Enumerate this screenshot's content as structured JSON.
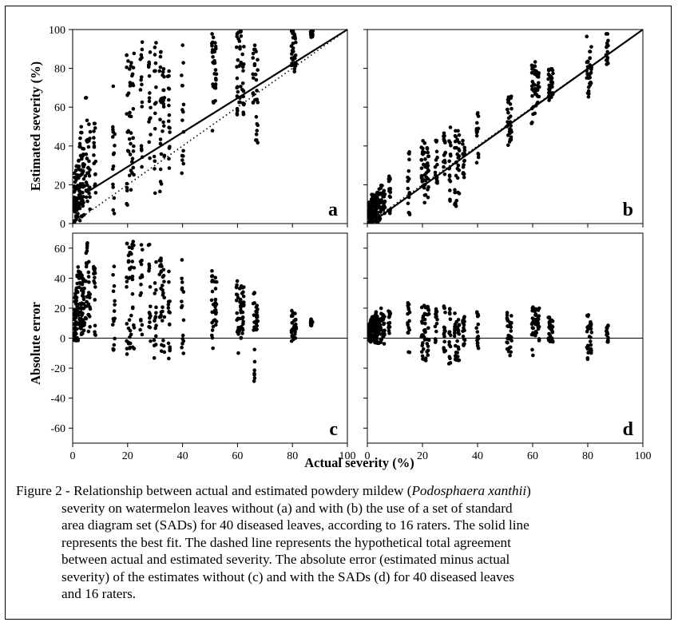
{
  "chart_data": [
    {
      "panel": "a",
      "type": "scatter",
      "ylabel": "Estimated severity (%)",
      "xlim": [
        0,
        100
      ],
      "ylim": [
        0,
        100
      ],
      "xticks": [],
      "yticks": [
        0,
        20,
        40,
        60,
        80,
        100
      ],
      "fit_line": {
        "x": [
          5,
          100
        ],
        "y": [
          16,
          100
        ]
      },
      "agreement_line": {
        "x": [
          0,
          100
        ],
        "y": [
          0,
          100
        ]
      },
      "points": {
        "actual_severity_levels": [
          0.5,
          1,
          1.5,
          2,
          2.5,
          3,
          3.5,
          4,
          5,
          6,
          8,
          15,
          20,
          21,
          22,
          25,
          28,
          30,
          32,
          33,
          35,
          40,
          51,
          52,
          60,
          61,
          62,
          66,
          67,
          80,
          81,
          87
        ],
        "estimated_ranges": [
          [
            0,
            20
          ],
          [
            0,
            28
          ],
          [
            0,
            30
          ],
          [
            0,
            36
          ],
          [
            0,
            45
          ],
          [
            0,
            50
          ],
          [
            2,
            45
          ],
          [
            3,
            40
          ],
          [
            5,
            70
          ],
          [
            5,
            56
          ],
          [
            10,
            57
          ],
          [
            5,
            72
          ],
          [
            8,
            90
          ],
          [
            10,
            92
          ],
          [
            15,
            88
          ],
          [
            20,
            95
          ],
          [
            25,
            97
          ],
          [
            15,
            95
          ],
          [
            10,
            90
          ],
          [
            20,
            80
          ],
          [
            25,
            80
          ],
          [
            25,
            93
          ],
          [
            45,
            98
          ],
          [
            55,
            96
          ],
          [
            50,
            100
          ],
          [
            48,
            100
          ],
          [
            55,
            100
          ],
          [
            60,
            92
          ],
          [
            33,
            90
          ],
          [
            80,
            100
          ],
          [
            78,
            100
          ],
          [
            95,
            100
          ]
        ]
      },
      "label": "a"
    },
    {
      "panel": "b",
      "type": "scatter",
      "xlim": [
        0,
        100
      ],
      "ylim": [
        0,
        100
      ],
      "xticks": [],
      "yticks": [],
      "fit_line": {
        "x": [
          1,
          100
        ],
        "y": [
          0,
          103
        ]
      },
      "agreement_line": {
        "x": [
          0,
          100
        ],
        "y": [
          0,
          100
        ]
      },
      "points": {
        "actual_severity_levels": [
          0.5,
          1,
          1.5,
          2,
          2.5,
          3,
          3.5,
          4,
          5,
          6,
          8,
          15,
          20,
          21,
          22,
          25,
          28,
          30,
          32,
          33,
          35,
          40,
          51,
          52,
          60,
          61,
          62,
          66,
          67,
          80,
          81,
          87
        ],
        "estimated_ranges": [
          [
            0,
            10
          ],
          [
            0,
            12
          ],
          [
            0,
            14
          ],
          [
            0,
            15
          ],
          [
            0,
            15
          ],
          [
            0,
            16
          ],
          [
            0,
            18
          ],
          [
            0,
            18
          ],
          [
            2,
            20
          ],
          [
            2,
            18
          ],
          [
            5,
            25
          ],
          [
            3,
            38
          ],
          [
            8,
            44
          ],
          [
            10,
            42
          ],
          [
            12,
            40
          ],
          [
            20,
            45
          ],
          [
            25,
            48
          ],
          [
            10,
            50
          ],
          [
            8,
            52
          ],
          [
            15,
            50
          ],
          [
            20,
            45
          ],
          [
            30,
            58
          ],
          [
            40,
            68
          ],
          [
            42,
            66
          ],
          [
            50,
            82
          ],
          [
            55,
            85
          ],
          [
            60,
            78
          ],
          [
            62,
            80
          ],
          [
            65,
            80
          ],
          [
            65,
            97
          ],
          [
            70,
            96
          ],
          [
            82,
            98
          ]
        ]
      },
      "label": "b"
    },
    {
      "panel": "c",
      "type": "scatter",
      "xlabel": "Actual severity (%)",
      "ylabel": "Absolute error",
      "xlim": [
        0,
        100
      ],
      "ylim": [
        -70,
        70
      ],
      "xticks": [
        0,
        20,
        40,
        60,
        80,
        100
      ],
      "yticks": [
        60,
        40,
        20,
        0,
        -20,
        -40,
        -60
      ],
      "reference_line_y": 0,
      "points": {
        "actual_severity_levels": [
          0.5,
          1,
          1.5,
          2,
          2.5,
          3,
          3.5,
          4,
          5,
          6,
          8,
          15,
          20,
          21,
          22,
          25,
          28,
          30,
          32,
          33,
          35,
          40,
          51,
          52,
          60,
          61,
          62,
          66,
          67,
          80,
          81,
          87
        ],
        "error_ranges": [
          [
            -2,
            20
          ],
          [
            -2,
            30
          ],
          [
            -2,
            35
          ],
          [
            -2,
            50
          ],
          [
            -2,
            48
          ],
          [
            -3,
            45
          ],
          [
            -2,
            40
          ],
          [
            -3,
            42
          ],
          [
            -3,
            65
          ],
          [
            -2,
            55
          ],
          [
            0,
            48
          ],
          [
            -10,
            57
          ],
          [
            -12,
            68
          ],
          [
            -10,
            68
          ],
          [
            -8,
            65
          ],
          [
            -5,
            68
          ],
          [
            -3,
            66
          ],
          [
            -15,
            62
          ],
          [
            -20,
            58
          ],
          [
            -12,
            55
          ],
          [
            -18,
            50
          ],
          [
            -15,
            53
          ],
          [
            -8,
            47
          ],
          [
            -2,
            45
          ],
          [
            -12,
            39
          ],
          [
            -5,
            38
          ],
          [
            -2,
            38
          ],
          [
            -34,
            31
          ],
          [
            5,
            22
          ],
          [
            -3,
            20
          ],
          [
            0,
            18
          ],
          [
            8,
            13
          ]
        ]
      },
      "label": "c"
    },
    {
      "panel": "d",
      "type": "scatter",
      "xlabel": "Actual severity (%)",
      "xlim": [
        0,
        100
      ],
      "ylim": [
        -70,
        70
      ],
      "xticks": [
        0,
        20,
        40,
        60,
        80,
        100
      ],
      "yticks": [],
      "reference_line_y": 0,
      "points": {
        "actual_severity_levels": [
          0.5,
          1,
          1.5,
          2,
          2.5,
          3,
          3.5,
          4,
          5,
          6,
          8,
          15,
          20,
          21,
          22,
          25,
          28,
          30,
          32,
          33,
          35,
          40,
          51,
          52,
          60,
          61,
          62,
          66,
          67,
          80,
          81,
          87
        ],
        "error_ranges": [
          [
            -2,
            10
          ],
          [
            -2,
            12
          ],
          [
            -3,
            14
          ],
          [
            -3,
            15
          ],
          [
            -3,
            16
          ],
          [
            -4,
            17
          ],
          [
            -4,
            18
          ],
          [
            -4,
            17
          ],
          [
            -5,
            20
          ],
          [
            -5,
            19
          ],
          [
            -3,
            20
          ],
          [
            -15,
            24
          ],
          [
            -17,
            22
          ],
          [
            -16,
            24
          ],
          [
            -15,
            22
          ],
          [
            -10,
            20
          ],
          [
            -12,
            22
          ],
          [
            -18,
            20
          ],
          [
            -22,
            20
          ],
          [
            -15,
            18
          ],
          [
            -10,
            16
          ],
          [
            -10,
            18
          ],
          [
            -16,
            18
          ],
          [
            -14,
            17
          ],
          [
            -12,
            22
          ],
          [
            -4,
            24
          ],
          [
            -2,
            20
          ],
          [
            -5,
            14
          ],
          [
            -3,
            12
          ],
          [
            -15,
            17
          ],
          [
            -10,
            14
          ],
          [
            -6,
            11
          ]
        ]
      },
      "label": "d"
    }
  ],
  "caption": {
    "lines": [
      [
        "Figure 2 - Relationship between actual and estimated powdery mildew (",
        {
          "i": "Podosphaera xanthii"
        },
        ")"
      ],
      [
        "severity on watermelon leaves without (a) and with (b) the use of a set of standard"
      ],
      [
        "area diagram set (SADs) for 40 diseased leaves, according to 16 raters. The solid line"
      ],
      [
        "represents the best fit. The dashed line represents the hypothetical total agreement"
      ],
      [
        "between actual and estimated severity. The absolute error (estimated minus actual"
      ],
      [
        "severity) of the estimates without (c) and with the SADs (d) for 40 diseased leaves"
      ],
      [
        "and 16 raters."
      ]
    ]
  }
}
